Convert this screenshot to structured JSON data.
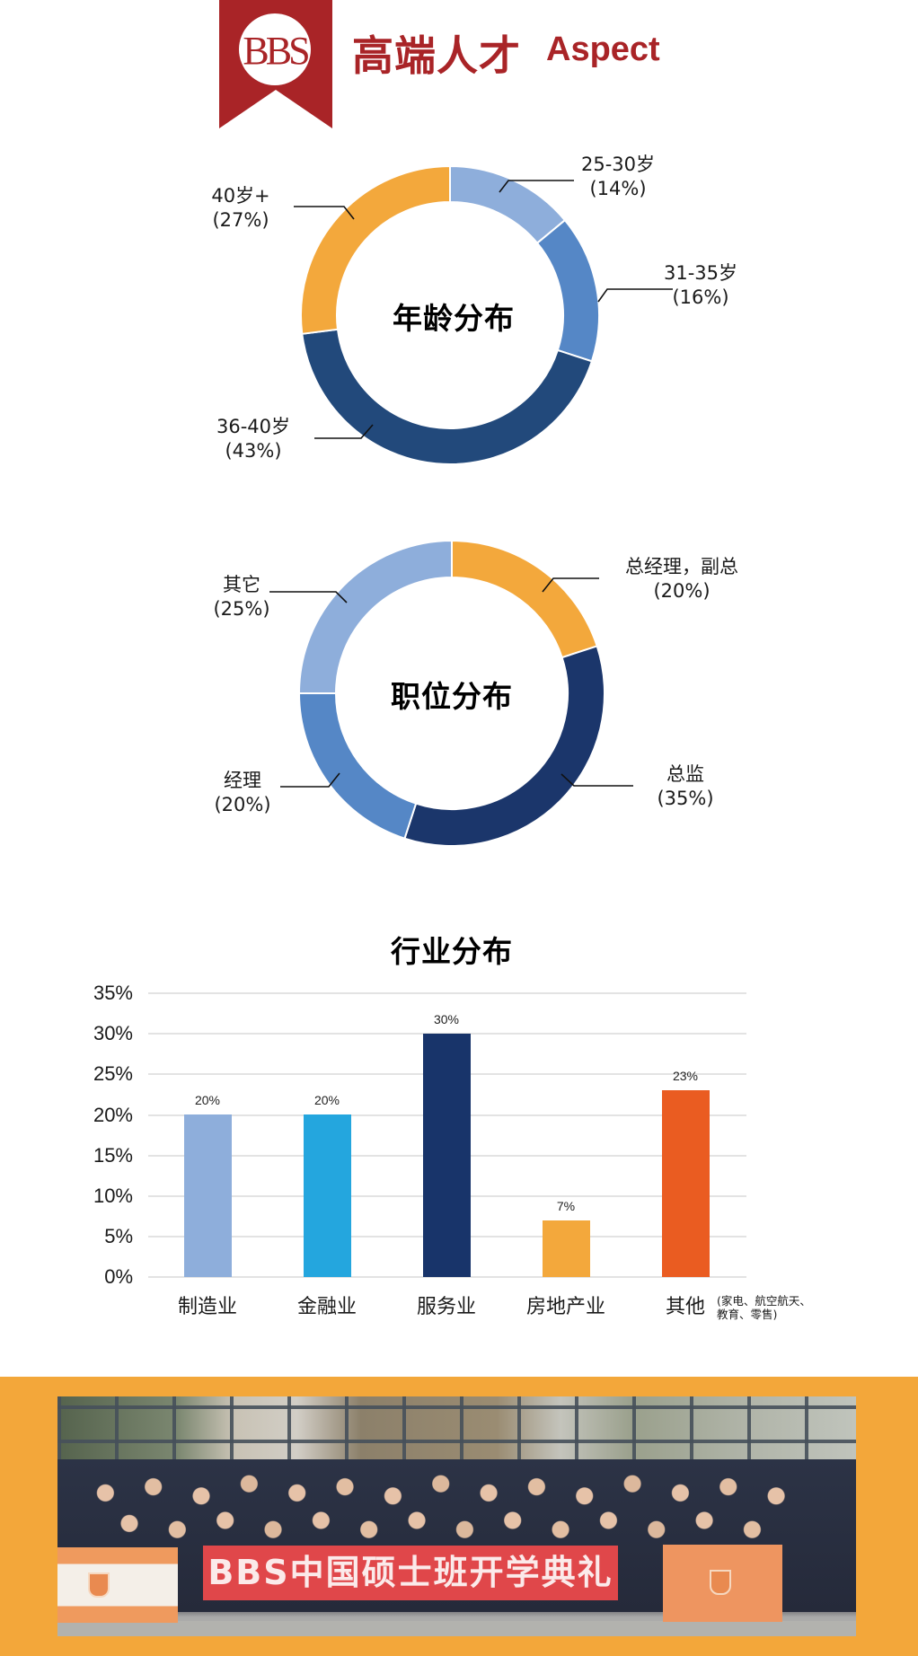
{
  "header": {
    "logo_text": "BBS",
    "title_cn": "高端人才",
    "title_en": "Aspect",
    "brand_color": "#A92427"
  },
  "age_chart": {
    "title": "年龄分布",
    "segments": [
      {
        "label": "25-30岁",
        "pct_label": "(14%)",
        "value": 14,
        "color": "#8EAEDB"
      },
      {
        "label": "31-35岁",
        "pct_label": "(16%)",
        "value": 16,
        "color": "#5587C6"
      },
      {
        "label": "36-40岁",
        "pct_label": "(43%)",
        "value": 43,
        "color": "#22497B"
      },
      {
        "label": "40岁+",
        "pct_label": "(27%)",
        "value": 27,
        "color": "#F3A83C"
      }
    ]
  },
  "position_chart": {
    "title": "职位分布",
    "segments": [
      {
        "label": "总经理，副总",
        "pct_label": "(20%)",
        "value": 20,
        "color": "#F3A83C"
      },
      {
        "label": "总监",
        "pct_label": "(35%)",
        "value": 35,
        "color": "#1B366B"
      },
      {
        "label": "经理",
        "pct_label": "(20%)",
        "value": 20,
        "color": "#5587C6"
      },
      {
        "label": "其它",
        "pct_label": "(25%)",
        "value": 25,
        "color": "#8EAEDB"
      }
    ]
  },
  "industry_chart": {
    "title": "行业分布",
    "y_ticks": [
      "35%",
      "30%",
      "25%",
      "20%",
      "15%",
      "10%",
      "5%",
      "0%"
    ],
    "categories": [
      "制造业",
      "金融业",
      "服务业",
      "房地产业",
      "其他"
    ],
    "value_labels": [
      "20%",
      "20%",
      "30%",
      "7%",
      "23%"
    ],
    "colors": [
      "#8EAEDB",
      "#24A6DE",
      "#18346A",
      "#F3A83C",
      "#EA5C21"
    ],
    "other_note_line1": "(家电、航空航天、",
    "other_note_line2": "教育、零售)"
  },
  "photo": {
    "banner_text": "BBS中国硕士班开学典礼",
    "frame_color": "#F3A73A"
  },
  "chart_data": [
    {
      "type": "pie",
      "title": "年龄分布",
      "categories": [
        "25-30岁",
        "31-35岁",
        "36-40岁",
        "40岁+"
      ],
      "values": [
        14,
        16,
        43,
        27
      ],
      "unit": "%"
    },
    {
      "type": "pie",
      "title": "职位分布",
      "categories": [
        "总经理，副总",
        "总监",
        "经理",
        "其它"
      ],
      "values": [
        20,
        35,
        20,
        25
      ],
      "unit": "%"
    },
    {
      "type": "bar",
      "title": "行业分布",
      "categories": [
        "制造业",
        "金融业",
        "服务业",
        "房地产业",
        "其他 (家电、航空航天、教育、零售)"
      ],
      "values": [
        20,
        20,
        30,
        7,
        23
      ],
      "xlabel": "",
      "ylabel": "",
      "ylim": [
        0,
        35
      ],
      "yticks": [
        0,
        5,
        10,
        15,
        20,
        25,
        30,
        35
      ],
      "unit": "%",
      "grid": true
    }
  ]
}
